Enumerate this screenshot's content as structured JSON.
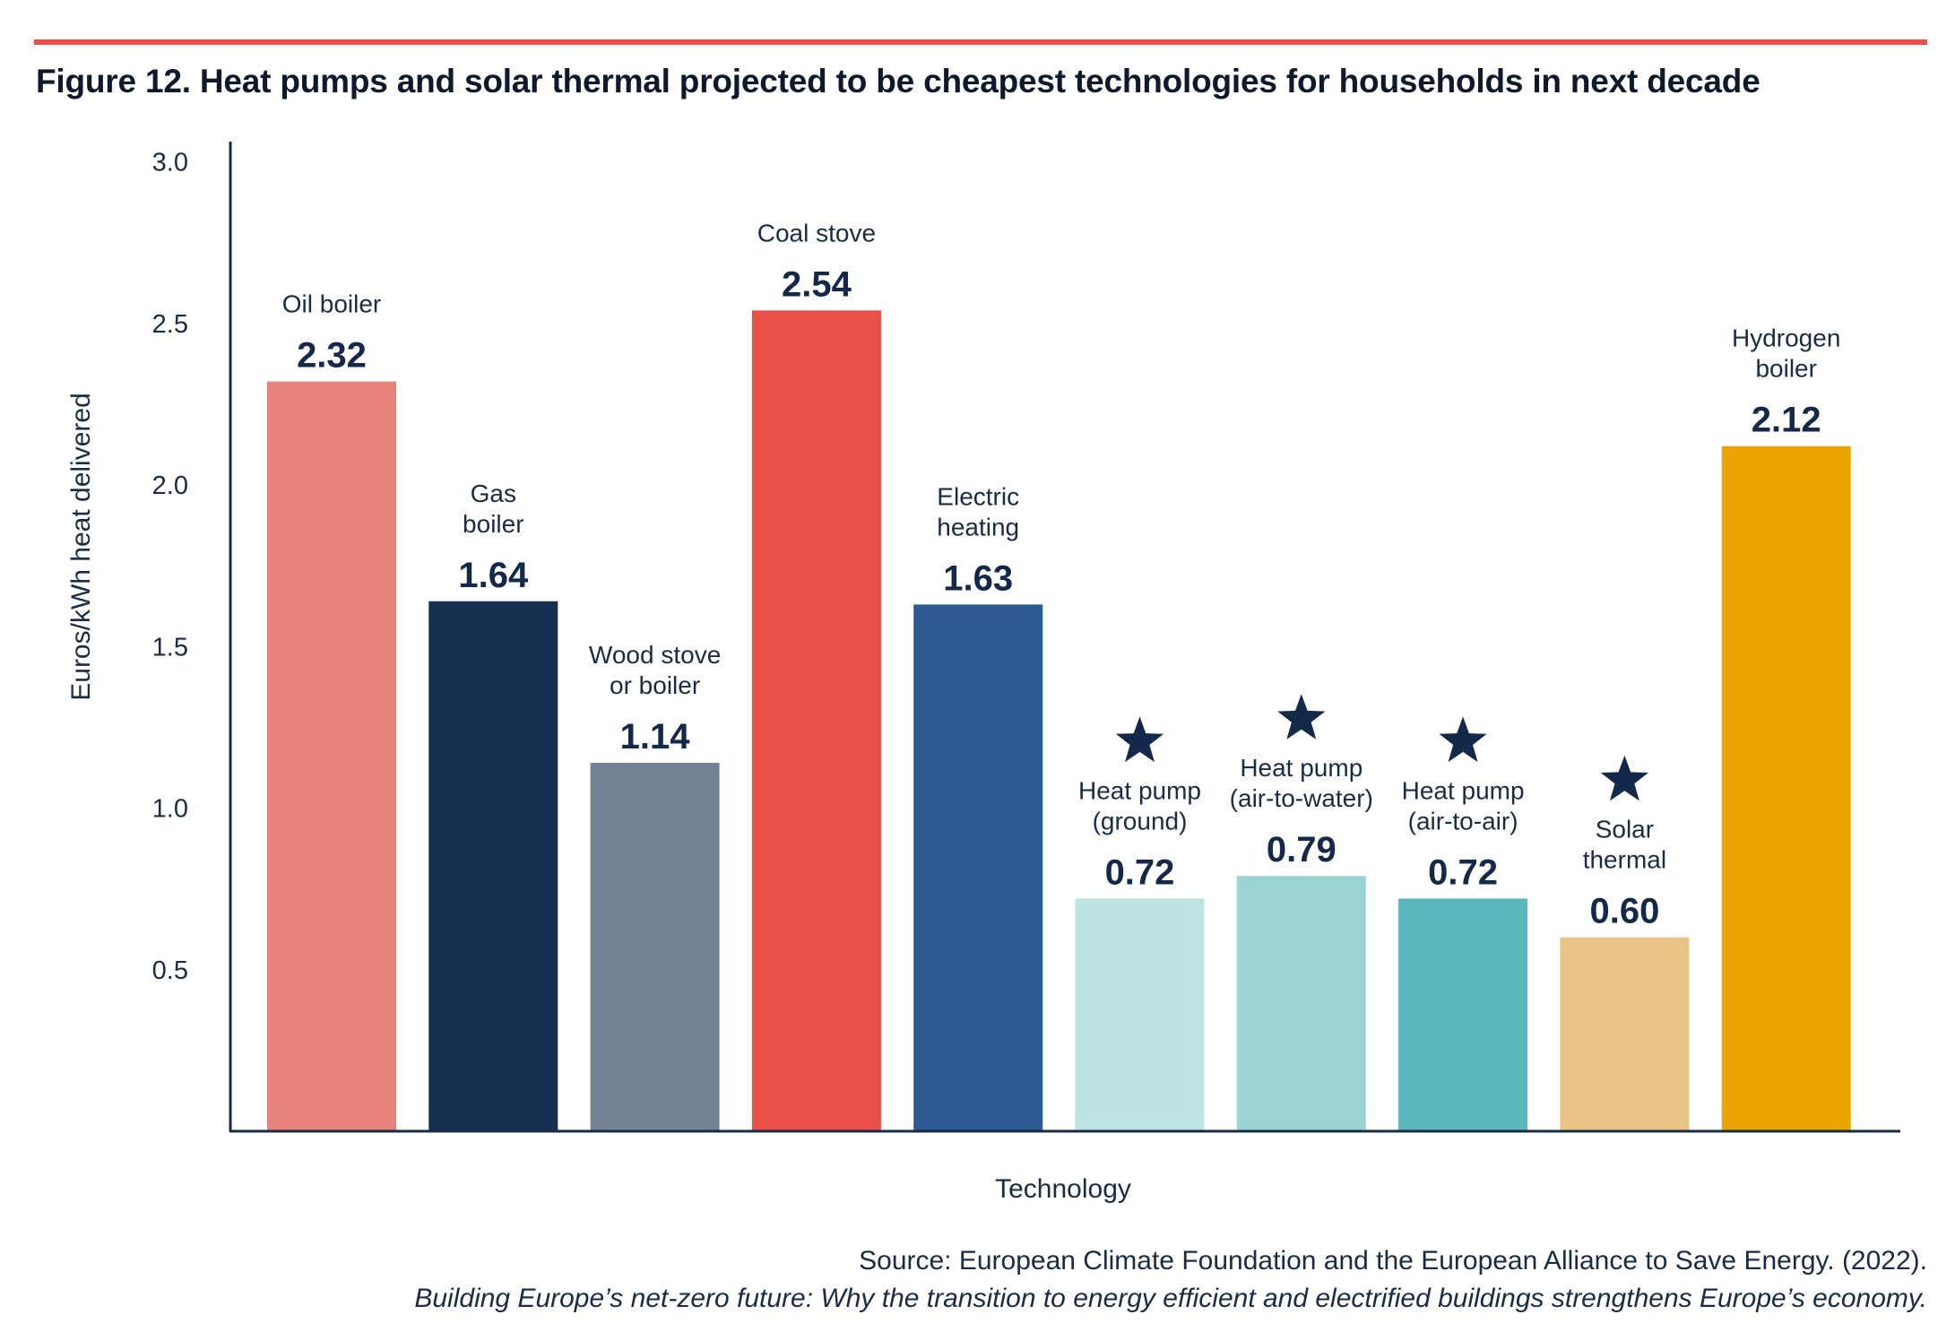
{
  "title": "Figure 12. Heat pumps and solar thermal projected to be cheapest technologies for households in next decade",
  "source": {
    "line1": "Source: European Climate Foundation and the European Alliance to Save Energy. (2022).",
    "line2": "Building Europe’s net-zero future: Why the transition to energy efficient and electrified buildings strengthens Europe’s economy."
  },
  "chart_data": {
    "type": "bar",
    "xlabel": "Technology",
    "ylabel": "Euros/kWh heat delivered",
    "ylim": [
      0,
      3.0
    ],
    "yticks": [
      "0.5",
      "1.0",
      "1.5",
      "2.0",
      "2.5",
      "3.0"
    ],
    "grid": false,
    "categories": [
      [
        "Oil boiler"
      ],
      [
        "Gas",
        "boiler"
      ],
      [
        "Wood stove",
        "or boiler"
      ],
      [
        "Coal stove"
      ],
      [
        "Electric",
        "heating"
      ],
      [
        "Heat pump",
        "(ground)"
      ],
      [
        "Heat pump",
        "(air-to-water)"
      ],
      [
        "Heat pump",
        "(air-to-air)"
      ],
      [
        "Solar",
        "thermal"
      ],
      [
        "Hydrogen",
        "boiler"
      ]
    ],
    "values": [
      2.32,
      1.64,
      1.14,
      2.54,
      1.63,
      0.72,
      0.79,
      0.72,
      0.6,
      2.12
    ],
    "value_labels": [
      "2.32",
      "1.64",
      "1.14",
      "2.54",
      "1.63",
      "0.72",
      "0.79",
      "0.72",
      "0.60",
      "2.12"
    ],
    "colors": [
      "#e6837a",
      "#17304f",
      "#738295",
      "#e85048",
      "#2c5a91",
      "#bfe2e2",
      "#9cd3d4",
      "#5bb7bb",
      "#e8c383",
      "#eba402"
    ],
    "starred": [
      false,
      false,
      false,
      false,
      false,
      true,
      true,
      true,
      true,
      false
    ],
    "star_color": "#14284a"
  }
}
